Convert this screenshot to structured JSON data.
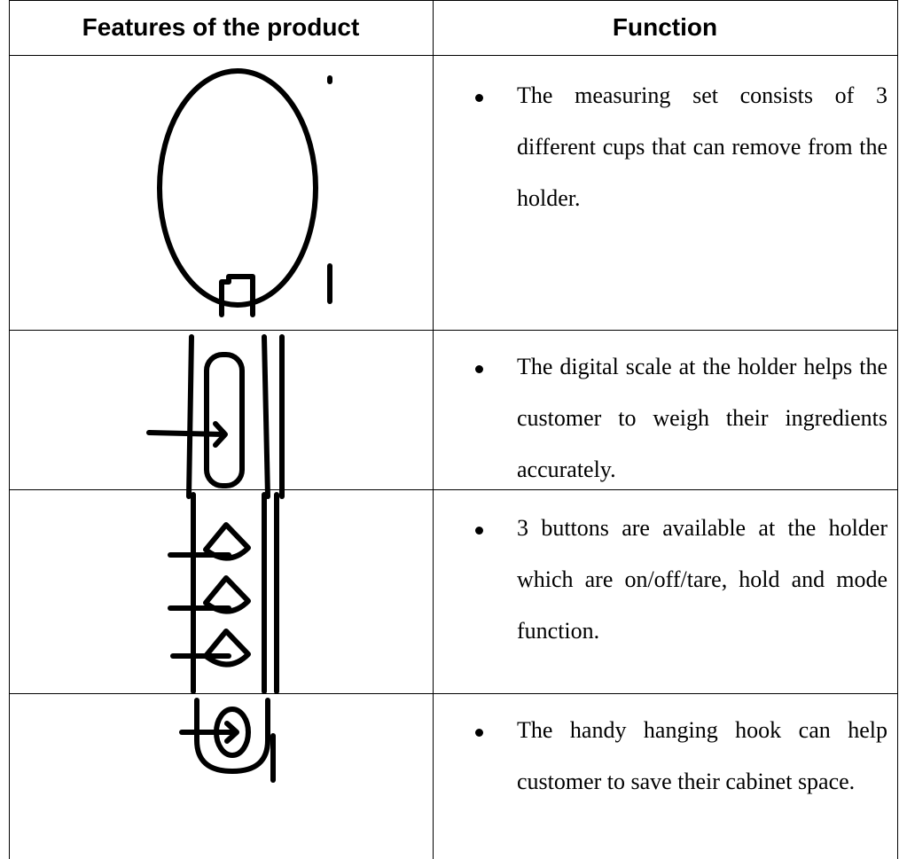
{
  "table": {
    "header": [
      "Features of the product",
      "Function"
    ],
    "rows": [
      [
        "The measuring set consists of 3 different cups that can remove from the holder."
      ],
      [
        "The digital scale at the holder helps the customer to weigh their ingredients accurately."
      ],
      [
        "3 buttons are available at the holder which are on/off/tare, hold and mode function."
      ],
      [
        "The handy hanging hook can help customer to save their cabinet space."
      ]
    ]
  }
}
